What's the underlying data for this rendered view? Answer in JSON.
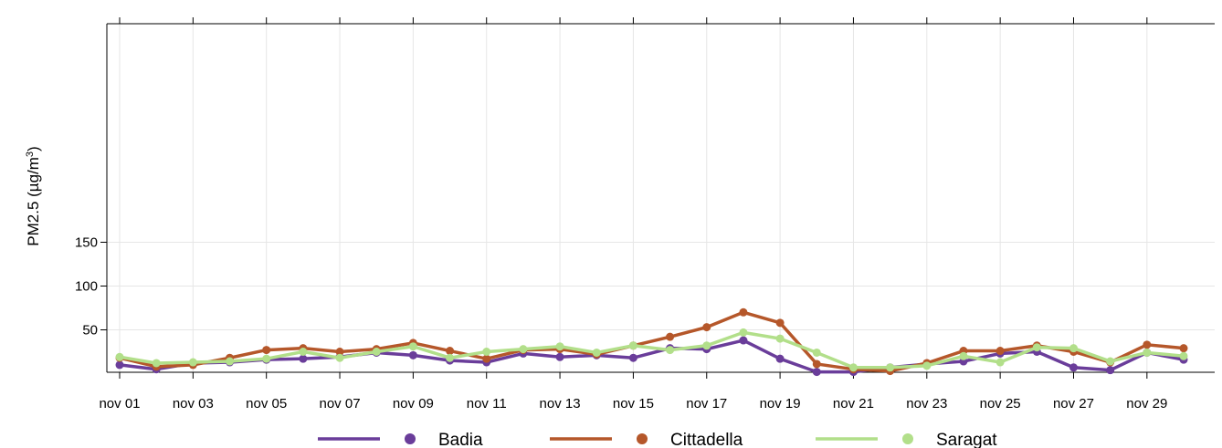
{
  "chart_data": {
    "type": "line",
    "x": [
      "nov 01",
      "nov 02",
      "nov 03",
      "nov 04",
      "nov 05",
      "nov 06",
      "nov 07",
      "nov 08",
      "nov 09",
      "nov 10",
      "nov 11",
      "nov 12",
      "nov 13",
      "nov 14",
      "nov 15",
      "nov 16",
      "nov 17",
      "nov 18",
      "nov 19",
      "nov 20",
      "nov 21",
      "nov 22",
      "nov 23",
      "nov 24",
      "nov 25",
      "nov 26",
      "nov 27",
      "nov 28",
      "nov 29",
      "nov 30"
    ],
    "xtick_labels": [
      "nov 01",
      "nov 03",
      "nov 05",
      "nov 07",
      "nov 09",
      "nov 11",
      "nov 13",
      "nov 15",
      "nov 17",
      "nov 19",
      "nov 21",
      "nov 23",
      "nov 25",
      "nov 27",
      "nov 29"
    ],
    "ylabel": "PM2.5 (µg/m³)",
    "ylabel_main": "PM2.5 (µg/m",
    "ylabel_sup": "3",
    "ylabel_close": ")",
    "ylim": [
      0,
      200
    ],
    "yticks": [
      50,
      100,
      150
    ],
    "grid": true,
    "legend_position": "bottom",
    "series": [
      {
        "name": "Badia",
        "color": "#6a3d9a",
        "values": [
          10,
          5,
          12,
          13,
          16,
          17,
          19,
          24,
          21,
          15,
          13,
          23,
          19,
          21,
          18,
          29,
          28,
          38,
          17,
          2,
          2,
          7,
          11,
          14,
          23,
          25,
          7,
          4,
          24,
          16
        ]
      },
      {
        "name": "Cittadella",
        "color": "#b5572a",
        "values": [
          18,
          8,
          10,
          18,
          27,
          29,
          25,
          28,
          35,
          26,
          17,
          27,
          28,
          22,
          32,
          42,
          53,
          70,
          58,
          11,
          5,
          3,
          12,
          26,
          26,
          32,
          25,
          13,
          33,
          29
        ]
      },
      {
        "name": "Saragat",
        "color": "#b2df8a",
        "values": [
          19,
          12,
          13,
          14,
          17,
          25,
          18,
          25,
          31,
          18,
          25,
          28,
          31,
          24,
          32,
          27,
          32,
          47,
          40,
          24,
          7,
          7,
          9,
          20,
          13,
          30,
          29,
          14,
          24,
          20
        ]
      }
    ]
  }
}
